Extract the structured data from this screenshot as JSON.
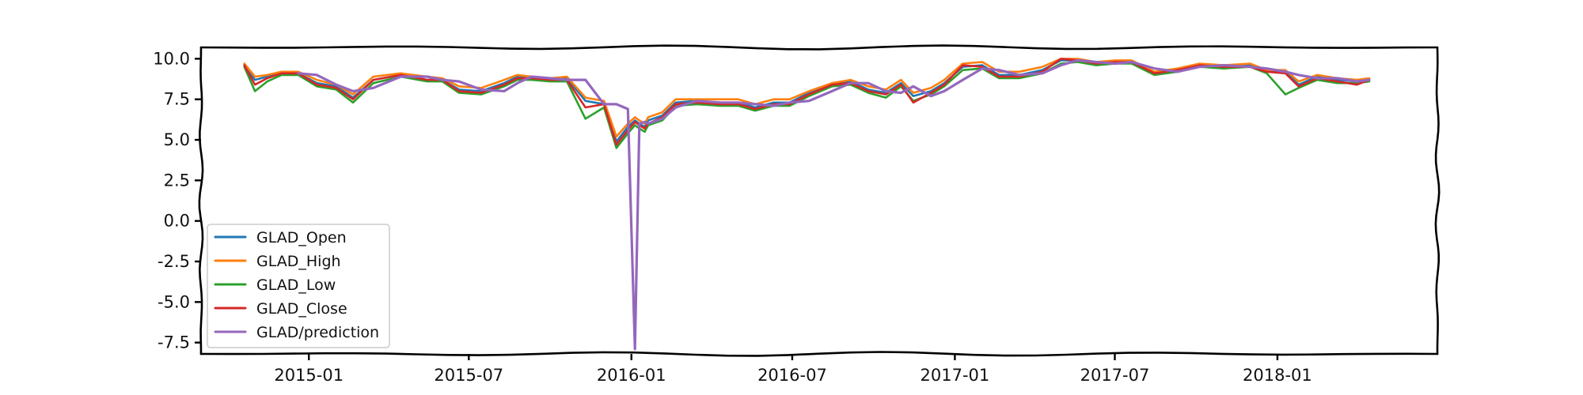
{
  "chart_data": {
    "type": "line",
    "title": "",
    "xlabel": "",
    "ylabel": "",
    "ylim": [
      -8.2,
      10.7
    ],
    "y_ticks": [
      10.0,
      7.5,
      5.0,
      2.5,
      0.0,
      -2.5,
      -5.0,
      -7.5
    ],
    "y_tick_labels": [
      "10.0",
      "7.5",
      "5.0",
      "2.5",
      "0.0",
      "-2.5",
      "-5.0",
      "-7.5"
    ],
    "xlim": [
      "2014-09-01",
      "2018-07-01"
    ],
    "x_ticks": [
      "2015-01-01",
      "2015-07-01",
      "2016-01-01",
      "2016-07-01",
      "2017-01-01",
      "2017-07-01",
      "2018-01-01"
    ],
    "x_tick_labels": [
      "2015-01",
      "2015-07",
      "2016-01",
      "2016-07",
      "2017-01",
      "2017-07",
      "2018-01"
    ],
    "grid": false,
    "legend_position": "lower-left",
    "style": "xkcd",
    "x": [
      "2014-10-20",
      "2014-11-01",
      "2014-11-15",
      "2014-12-01",
      "2014-12-20",
      "2015-01-10",
      "2015-02-01",
      "2015-02-20",
      "2015-03-15",
      "2015-04-15",
      "2015-05-15",
      "2015-06-01",
      "2015-06-20",
      "2015-07-15",
      "2015-08-10",
      "2015-08-25",
      "2015-09-10",
      "2015-10-01",
      "2015-10-20",
      "2015-11-10",
      "2015-12-01",
      "2015-12-15",
      "2015-12-28",
      "2016-01-05",
      "2016-01-10",
      "2016-01-16",
      "2016-01-20",
      "2016-02-05",
      "2016-02-20",
      "2016-03-15",
      "2016-04-10",
      "2016-05-01",
      "2016-05-20",
      "2016-06-10",
      "2016-06-28",
      "2016-07-20",
      "2016-08-15",
      "2016-09-05",
      "2016-09-25",
      "2016-10-15",
      "2016-11-01",
      "2016-11-15",
      "2016-12-05",
      "2016-12-20",
      "2017-01-10",
      "2017-02-01",
      "2017-02-20",
      "2017-03-15",
      "2017-04-10",
      "2017-05-01",
      "2017-05-20",
      "2017-06-10",
      "2017-07-01",
      "2017-07-20",
      "2017-08-15",
      "2017-09-10",
      "2017-10-05",
      "2017-11-01",
      "2017-12-01",
      "2017-12-20",
      "2018-01-10",
      "2018-01-25",
      "2018-02-15",
      "2018-03-10",
      "2018-04-01",
      "2018-04-15"
    ],
    "series": [
      {
        "name": "GLAD_Open",
        "color": "#1f77b4",
        "values": [
          9.6,
          8.7,
          8.9,
          9.1,
          9.1,
          8.5,
          8.3,
          7.6,
          8.7,
          9.0,
          8.7,
          8.7,
          8.1,
          8.0,
          8.5,
          8.9,
          8.8,
          8.7,
          8.8,
          7.4,
          7.2,
          4.9,
          5.8,
          6.2,
          6.0,
          5.8,
          6.2,
          6.5,
          7.3,
          7.4,
          7.3,
          7.3,
          7.0,
          7.3,
          7.3,
          7.9,
          8.4,
          8.6,
          8.1,
          7.9,
          8.5,
          7.7,
          8.0,
          8.5,
          9.5,
          9.6,
          9.0,
          9.0,
          9.3,
          9.9,
          9.9,
          9.7,
          9.8,
          9.8,
          9.1,
          9.3,
          9.6,
          9.5,
          9.6,
          9.2,
          9.2,
          8.4,
          8.9,
          8.7,
          8.6,
          8.7
        ]
      },
      {
        "name": "GLAD_High",
        "color": "#ff7f0e",
        "values": [
          9.7,
          8.9,
          9.0,
          9.2,
          9.2,
          8.7,
          8.4,
          7.8,
          8.9,
          9.1,
          8.9,
          8.8,
          8.3,
          8.2,
          8.7,
          9.0,
          8.9,
          8.8,
          8.9,
          7.6,
          7.4,
          5.2,
          6.0,
          6.4,
          6.2,
          6.0,
          6.4,
          6.7,
          7.5,
          7.5,
          7.5,
          7.5,
          7.2,
          7.5,
          7.5,
          8.0,
          8.5,
          8.7,
          8.3,
          8.1,
          8.7,
          7.9,
          8.2,
          8.7,
          9.7,
          9.8,
          9.2,
          9.2,
          9.5,
          10.0,
          10.0,
          9.8,
          9.9,
          9.9,
          9.2,
          9.4,
          9.7,
          9.6,
          9.7,
          9.3,
          9.3,
          8.6,
          9.0,
          8.8,
          8.7,
          8.8
        ]
      },
      {
        "name": "GLAD_Low",
        "color": "#2ca02c",
        "values": [
          9.5,
          8.0,
          8.6,
          9.0,
          9.0,
          8.3,
          8.1,
          7.3,
          8.5,
          8.9,
          8.6,
          8.6,
          7.9,
          7.8,
          8.3,
          8.7,
          8.7,
          8.6,
          8.6,
          6.3,
          7.0,
          4.5,
          5.4,
          5.9,
          5.7,
          5.5,
          5.9,
          6.2,
          7.1,
          7.2,
          7.1,
          7.1,
          6.8,
          7.1,
          7.1,
          7.7,
          8.3,
          8.4,
          7.9,
          7.6,
          8.3,
          7.4,
          7.8,
          8.3,
          9.3,
          9.4,
          8.8,
          8.8,
          9.1,
          9.7,
          9.8,
          9.6,
          9.7,
          9.7,
          9.0,
          9.2,
          9.5,
          9.4,
          9.5,
          9.1,
          7.8,
          8.2,
          8.7,
          8.5,
          8.5,
          8.6
        ]
      },
      {
        "name": "GLAD_Close",
        "color": "#d62728",
        "values": [
          9.6,
          8.4,
          8.8,
          9.1,
          9.1,
          8.4,
          8.2,
          7.5,
          8.7,
          9.0,
          8.7,
          8.7,
          8.0,
          7.9,
          8.4,
          8.8,
          8.8,
          8.7,
          8.7,
          7.0,
          7.2,
          4.7,
          5.6,
          6.1,
          5.9,
          5.7,
          6.0,
          6.4,
          7.2,
          7.3,
          7.2,
          7.2,
          6.9,
          7.2,
          7.2,
          7.8,
          8.4,
          8.5,
          8.0,
          7.8,
          8.4,
          7.3,
          7.9,
          8.4,
          9.6,
          9.5,
          8.9,
          8.9,
          9.2,
          10.0,
          9.9,
          9.7,
          9.8,
          9.8,
          9.1,
          9.3,
          9.6,
          9.5,
          9.5,
          9.2,
          9.1,
          8.3,
          8.8,
          8.6,
          8.4,
          8.7
        ]
      },
      {
        "name": "GLAD/prediction",
        "color": "#9467bd",
        "values": [
          null,
          null,
          null,
          null,
          9.1,
          9.0,
          8.4,
          8.0,
          8.2,
          8.9,
          8.9,
          8.7,
          8.6,
          8.1,
          8.0,
          8.5,
          8.9,
          8.8,
          8.7,
          8.7,
          7.2,
          7.2,
          6.9,
          -7.9,
          6.0,
          6.1,
          6.0,
          6.3,
          7.0,
          7.4,
          7.3,
          7.3,
          7.2,
          7.1,
          7.3,
          7.4,
          8.0,
          8.5,
          8.5,
          8.0,
          7.9,
          8.3,
          7.7,
          8.0,
          8.7,
          9.4,
          9.3,
          9.0,
          9.1,
          9.6,
          9.9,
          9.8,
          9.7,
          9.8,
          9.4,
          9.2,
          9.5,
          9.6,
          9.5,
          9.4,
          9.2,
          9.0,
          8.8,
          8.8,
          8.6,
          8.7
        ]
      }
    ]
  }
}
